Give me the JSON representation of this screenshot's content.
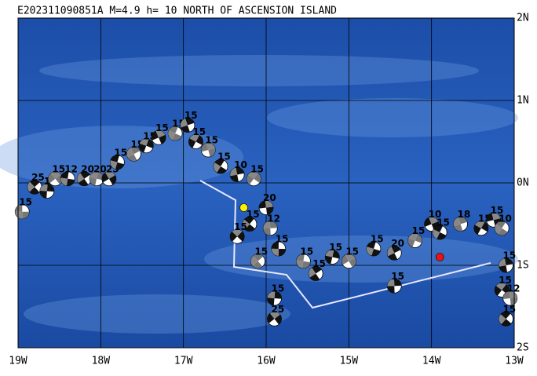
{
  "title": "E202311090851A  M=4.9  h= 10  NORTH OF ASCENSION ISLAND",
  "lonlim": [
    -19,
    -13
  ],
  "latlim": [
    -2,
    2
  ],
  "lat_ticks": [
    {
      "value": 2,
      "label": "2N"
    },
    {
      "value": 1,
      "label": "1N"
    },
    {
      "value": 0,
      "label": "0N"
    },
    {
      "value": -1,
      "label": "1S"
    },
    {
      "value": -2,
      "label": "2S"
    }
  ],
  "lon_ticks": [
    {
      "value": -19,
      "label": "19W"
    },
    {
      "value": -18,
      "label": "18W"
    },
    {
      "value": -17,
      "label": "17W"
    },
    {
      "value": -16,
      "label": "16W"
    },
    {
      "value": -15,
      "label": "15W"
    },
    {
      "value": -14,
      "label": "14W"
    },
    {
      "value": -13,
      "label": "13W"
    }
  ],
  "events": [
    {
      "lon": -18.95,
      "lat": -0.35,
      "depth": "15"
    },
    {
      "lon": -18.8,
      "lat": -0.05,
      "depth": "25"
    },
    {
      "lon": -18.65,
      "lat": -0.1,
      "depth": "15"
    },
    {
      "lon": -18.55,
      "lat": 0.05,
      "depth": "15"
    },
    {
      "lon": -18.4,
      "lat": 0.05,
      "depth": "12"
    },
    {
      "lon": -18.2,
      "lat": 0.05,
      "depth": "20"
    },
    {
      "lon": -18.05,
      "lat": 0.05,
      "depth": "20"
    },
    {
      "lon": -17.9,
      "lat": 0.05,
      "depth": "25"
    },
    {
      "lon": -17.8,
      "lat": 0.25,
      "depth": "15"
    },
    {
      "lon": -17.6,
      "lat": 0.35,
      "depth": "15"
    },
    {
      "lon": -17.45,
      "lat": 0.45,
      "depth": "15"
    },
    {
      "lon": -17.3,
      "lat": 0.55,
      "depth": "15"
    },
    {
      "lon": -17.1,
      "lat": 0.6,
      "depth": "15"
    },
    {
      "lon": -16.95,
      "lat": 0.7,
      "depth": "15"
    },
    {
      "lon": -16.85,
      "lat": 0.5,
      "depth": "15"
    },
    {
      "lon": -16.7,
      "lat": 0.4,
      "depth": "15"
    },
    {
      "lon": -16.55,
      "lat": 0.2,
      "depth": "15"
    },
    {
      "lon": -16.35,
      "lat": 0.1,
      "depth": "10"
    },
    {
      "lon": -16.15,
      "lat": 0.05,
      "depth": "15"
    },
    {
      "lon": -16.0,
      "lat": -0.3,
      "depth": "20"
    },
    {
      "lon": -16.2,
      "lat": -0.5,
      "depth": "15"
    },
    {
      "lon": -15.95,
      "lat": -0.55,
      "depth": "12"
    },
    {
      "lon": -16.35,
      "lat": -0.65,
      "depth": "15"
    },
    {
      "lon": -15.85,
      "lat": -0.8,
      "depth": "15"
    },
    {
      "lon": -16.1,
      "lat": -0.95,
      "depth": "15"
    },
    {
      "lon": -15.9,
      "lat": -1.4,
      "depth": "15"
    },
    {
      "lon": -15.9,
      "lat": -1.65,
      "depth": "25"
    },
    {
      "lon": -15.55,
      "lat": -0.95,
      "depth": "15"
    },
    {
      "lon": -15.4,
      "lat": -1.1,
      "depth": "15"
    },
    {
      "lon": -15.2,
      "lat": -0.9,
      "depth": "15"
    },
    {
      "lon": -15.0,
      "lat": -0.95,
      "depth": "15"
    },
    {
      "lon": -14.7,
      "lat": -0.8,
      "depth": "15"
    },
    {
      "lon": -14.45,
      "lat": -0.85,
      "depth": "20"
    },
    {
      "lon": -14.2,
      "lat": -0.7,
      "depth": "15"
    },
    {
      "lon": -14.0,
      "lat": -0.5,
      "depth": "10"
    },
    {
      "lon": -13.9,
      "lat": -0.6,
      "depth": "15"
    },
    {
      "lon": -13.65,
      "lat": -0.5,
      "depth": "18"
    },
    {
      "lon": -13.4,
      "lat": -0.55,
      "depth": "15"
    },
    {
      "lon": -13.25,
      "lat": -0.45,
      "depth": "15"
    },
    {
      "lon": -13.15,
      "lat": -0.55,
      "depth": "10"
    },
    {
      "lon": -13.1,
      "lat": -1.0,
      "depth": "15"
    },
    {
      "lon": -13.15,
      "lat": -1.3,
      "depth": "15"
    },
    {
      "lon": -13.05,
      "lat": -1.4,
      "depth": "12"
    },
    {
      "lon": -13.1,
      "lat": -1.65,
      "depth": "15"
    },
    {
      "lon": -14.45,
      "lat": -1.25,
      "depth": "15"
    }
  ],
  "markers": [
    {
      "lon": -16.27,
      "lat": -0.3,
      "color": "#ffee00"
    },
    {
      "lon": -13.9,
      "lat": -0.9,
      "color": "#ee1111"
    }
  ]
}
